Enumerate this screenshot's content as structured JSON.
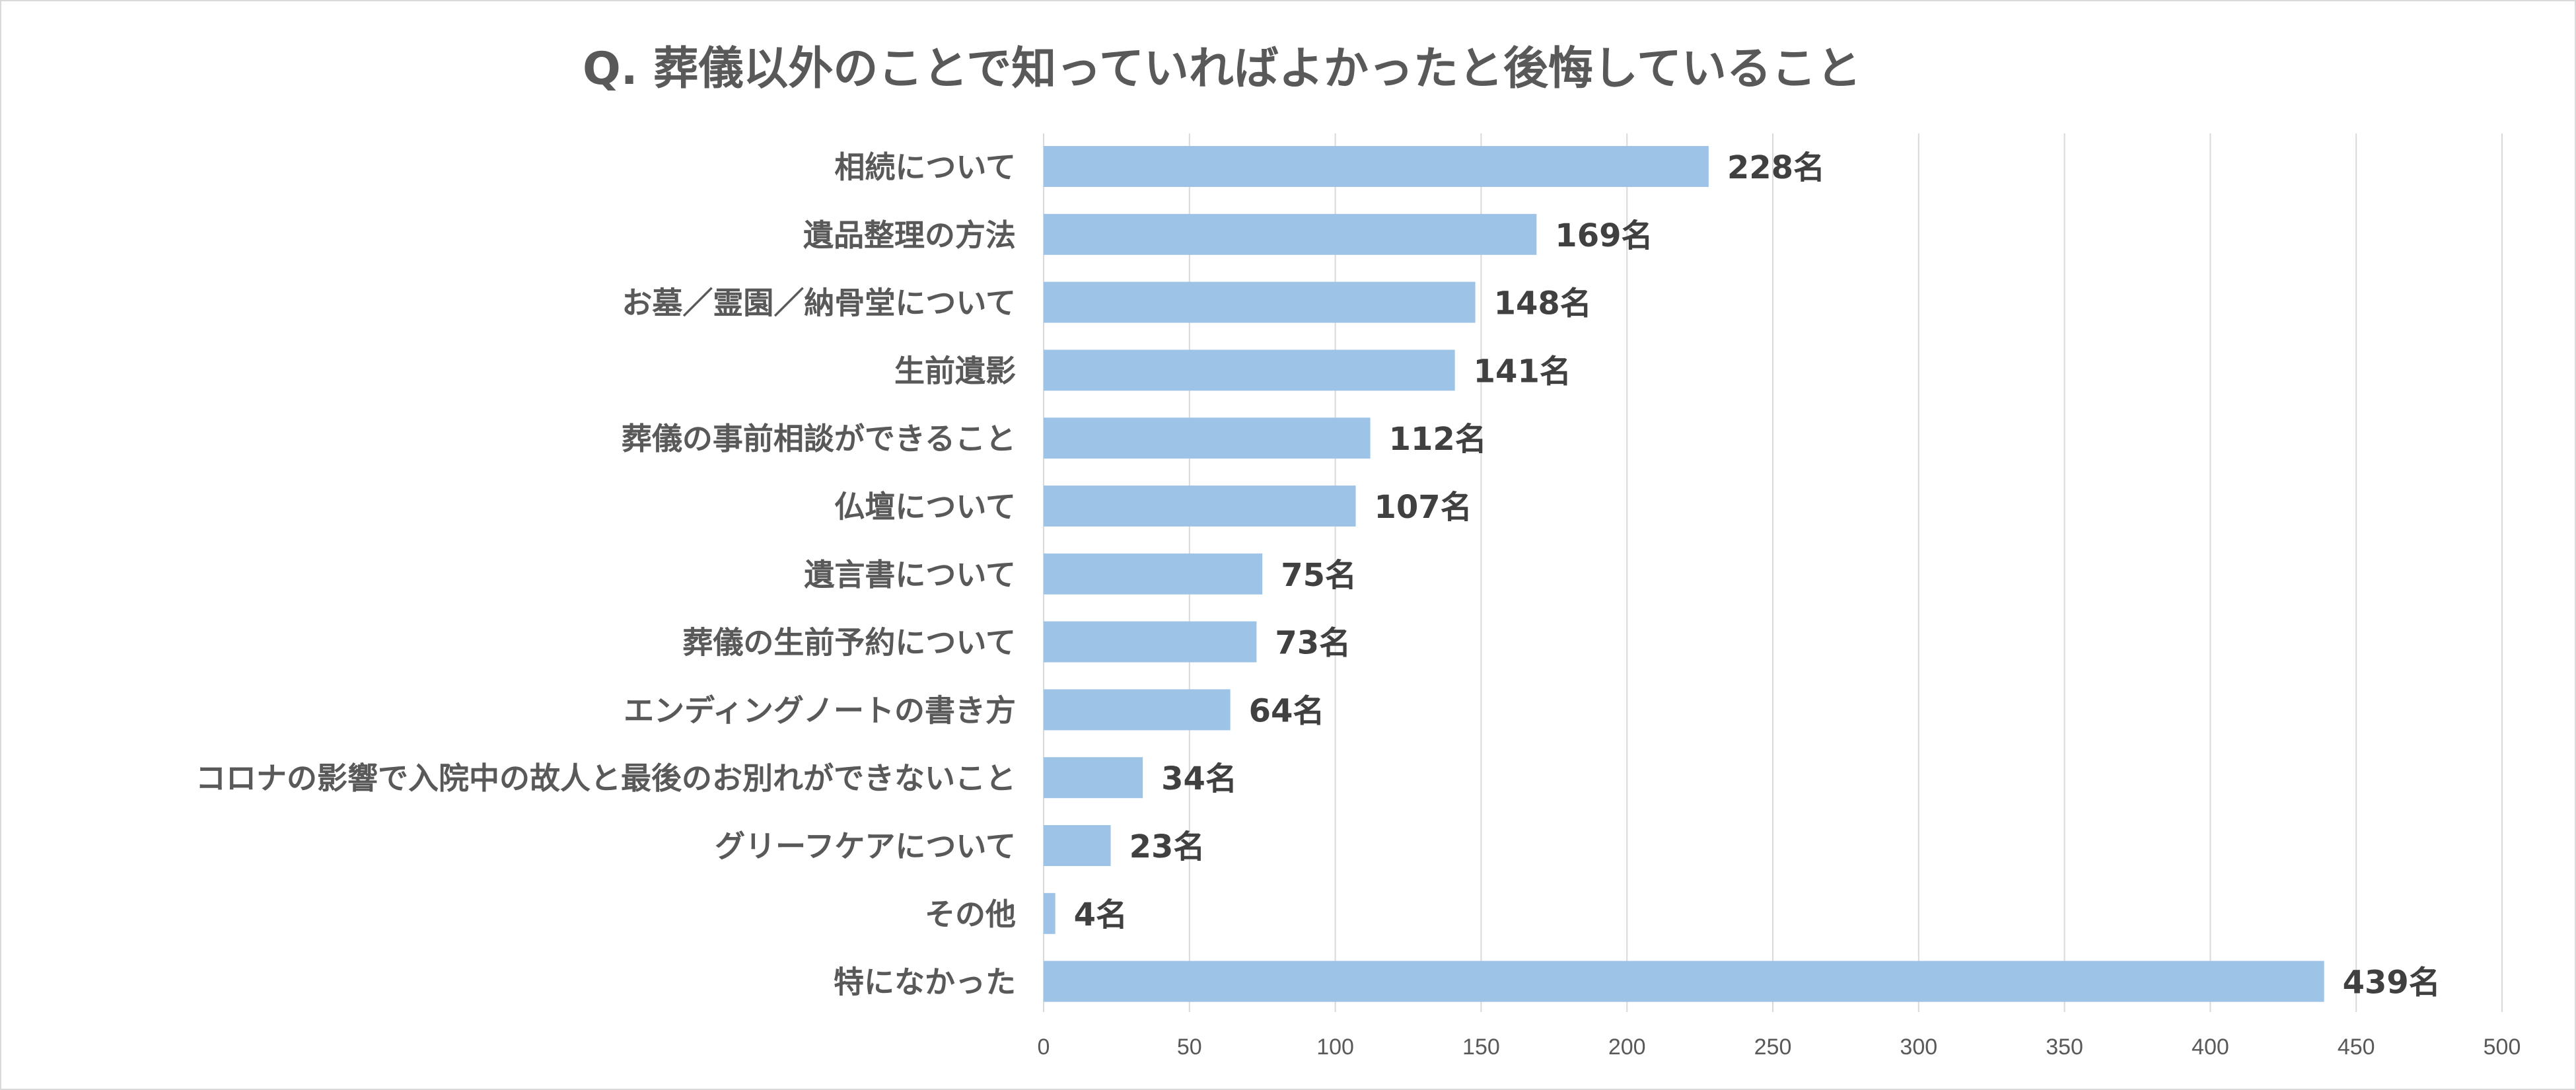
{
  "chart_data": {
    "type": "bar",
    "orientation": "horizontal",
    "title": "Q. 葬儀以外のことで知っていればよかったと後悔していること",
    "xlabel": "",
    "ylabel": "",
    "xlim": [
      0,
      500
    ],
    "ticks": [
      "0",
      "50",
      "100",
      "150",
      "200",
      "250",
      "300",
      "350",
      "400",
      "450",
      "500"
    ],
    "tick_values": [
      0,
      50,
      100,
      150,
      200,
      250,
      300,
      350,
      400,
      450,
      500
    ],
    "grid": true,
    "legend": "none",
    "bar_color": "#9dc3e6",
    "value_suffix": "名",
    "categories": [
      "相続について",
      "遺品整理の方法",
      "お墓／霊園／納骨堂について",
      "生前遺影",
      "葬儀の事前相談ができること",
      "仏壇について",
      "遺言書について",
      "葬儀の生前予約について",
      "エンディングノートの書き方",
      "コロナの影響で入院中の故人と最後のお別れができないこと",
      "グリーフケアについて",
      "その他",
      "特になかった"
    ],
    "values": [
      228,
      169,
      148,
      141,
      112,
      107,
      75,
      73,
      64,
      34,
      23,
      4,
      439
    ],
    "data_labels": [
      "228名",
      "169名",
      "148名",
      "141名",
      "112名",
      "107名",
      "75名",
      "73名",
      "64名",
      "34名",
      "23名",
      "4名",
      "439名"
    ]
  }
}
